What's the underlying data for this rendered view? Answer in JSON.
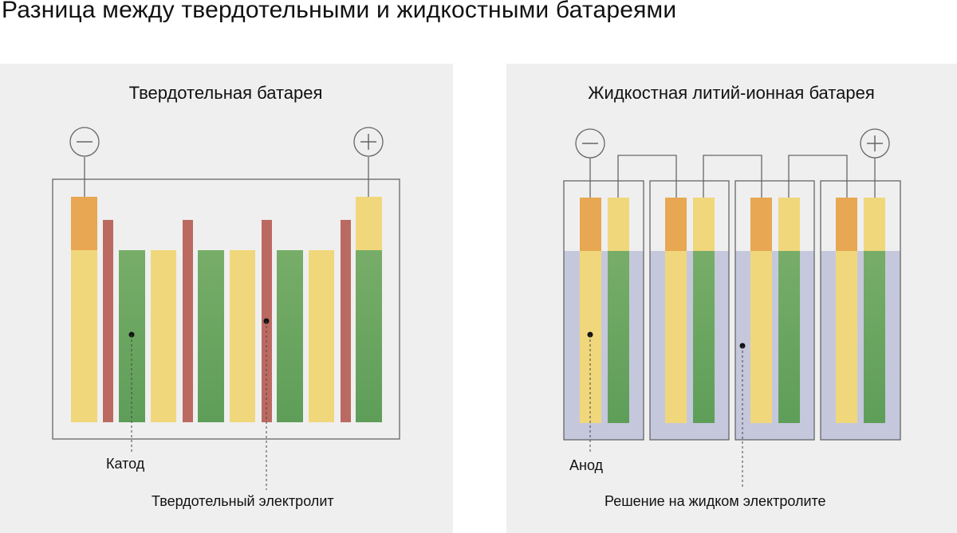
{
  "title": "Разница между твердотельными и жидкостными батареями",
  "left_panel": {
    "title": "Твердотельная батарея",
    "labels": {
      "cathode": "Катод",
      "solid_electrolyte": "Твердотельный электролит"
    },
    "terminals": {
      "negative": "−",
      "positive": "+"
    }
  },
  "right_panel": {
    "title": "Жидкостная литий-ионная батарея",
    "labels": {
      "anode": "Анод",
      "liquid_electrolyte": "Решение на жидком электролите"
    },
    "terminals": {
      "negative": "−",
      "positive": "+"
    }
  },
  "colors": {
    "panel_bg": "#efefef",
    "outline": "#666666",
    "orange": "#e8a752",
    "yellow": "#f0d77b",
    "green": "#5e9e59",
    "green_light": "#77ad68",
    "red": "#bb6a62",
    "liquid": "#c5c8dc"
  }
}
